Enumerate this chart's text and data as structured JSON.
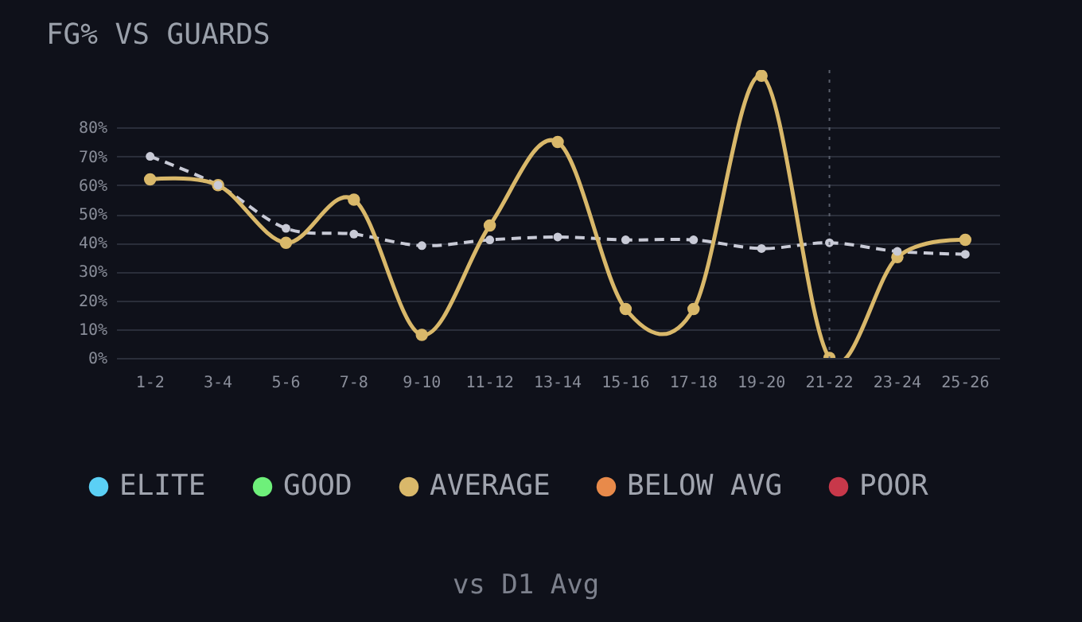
{
  "chart_data": {
    "type": "line",
    "title": "FG% VS GUARDS",
    "categories": [
      "1-2",
      "3-4",
      "5-6",
      "7-8",
      "9-10",
      "11-12",
      "13-14",
      "15-16",
      "17-18",
      "19-20",
      "21-22",
      "23-24",
      "25-26"
    ],
    "series": [
      {
        "color": "#c8cad6",
        "line_style": "dashed",
        "marker": "circle",
        "values": [
          70,
          60,
          45,
          43,
          39,
          41,
          42,
          41,
          41,
          38,
          40,
          37,
          36
        ]
      },
      {
        "name": "ELITE",
        "type": "scatter",
        "color": "#5bd0f5",
        "values": [
          null,
          null,
          null,
          null,
          null,
          null,
          null,
          null,
          null,
          null,
          null,
          null,
          null
        ]
      },
      {
        "name": "GOOD",
        "type": "scatter",
        "color": "#6ef07a",
        "values": [
          null,
          null,
          null,
          null,
          null,
          null,
          null,
          null,
          null,
          null,
          null,
          null,
          null
        ]
      },
      {
        "name": "AVERAGE",
        "color": "#d9b86a",
        "line_style": "solid",
        "marker": "circle",
        "values": [
          62,
          60,
          40,
          55,
          8,
          46,
          75,
          17,
          17,
          98,
          0,
          35,
          41
        ]
      },
      {
        "name": "BELOW AVG",
        "type": "scatter",
        "color": "#e88a4a",
        "values": [
          null,
          null,
          null,
          null,
          null,
          null,
          null,
          null,
          null,
          null,
          null,
          null,
          null
        ]
      },
      {
        "name": "POOR",
        "type": "scatter",
        "color": "#c8384a",
        "values": [
          null,
          null,
          null,
          null,
          null,
          null,
          null,
          null,
          null,
          null,
          null,
          null,
          null
        ]
      }
    ],
    "ylim": [
      0,
      100
    ],
    "yticks": [
      {
        "value": 0,
        "label": "0%"
      },
      {
        "value": 10,
        "label": "10%"
      },
      {
        "value": 20,
        "label": "20%"
      },
      {
        "value": 30,
        "label": "30%"
      },
      {
        "value": 40,
        "label": "40%"
      },
      {
        "value": 50,
        "label": "50%"
      },
      {
        "value": 60,
        "label": "60%"
      },
      {
        "value": 70,
        "label": "70%"
      },
      {
        "value": 80,
        "label": "80%"
      }
    ],
    "ref_lines": [
      {
        "axis": "x",
        "value": "21-22",
        "color": "#5a5f6c",
        "line_style": "dotted"
      }
    ],
    "grid": "y",
    "legend": "bottom",
    "annotations": [
      "vs D1 Avg"
    ]
  }
}
